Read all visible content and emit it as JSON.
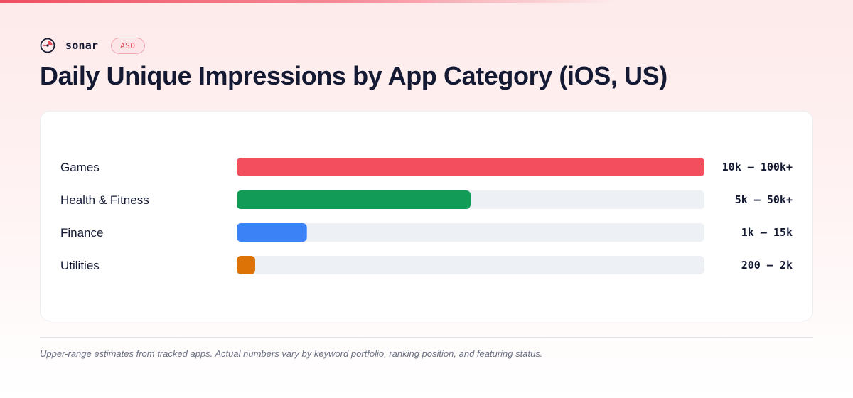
{
  "brand": {
    "name": "sonar",
    "badge": "ASO",
    "logo_icon": "sonar-radar-icon",
    "accent_color": "#e04d5d"
  },
  "page": {
    "title": "Daily Unique Impressions by App Category (iOS, US)",
    "footnote": "Upper-range estimates from tracked apps. Actual numbers vary by keyword portfolio, ranking position, and featuring status."
  },
  "chart_data": {
    "type": "bar",
    "orientation": "horizontal",
    "categories": [
      "Games",
      "Health & Fitness",
      "Finance",
      "Utilities"
    ],
    "values": [
      100000,
      50000,
      15000,
      2000
    ],
    "value_labels": [
      "10k – 100k+",
      "5k – 50k+",
      "1k – 15k",
      "200 – 2k"
    ],
    "colors": [
      "#f24e5e",
      "#129b57",
      "#3b82f6",
      "#dd7306"
    ],
    "track_color": "#edf0f4",
    "xlim": [
      0,
      100000
    ],
    "grid": false,
    "legend": "none"
  }
}
